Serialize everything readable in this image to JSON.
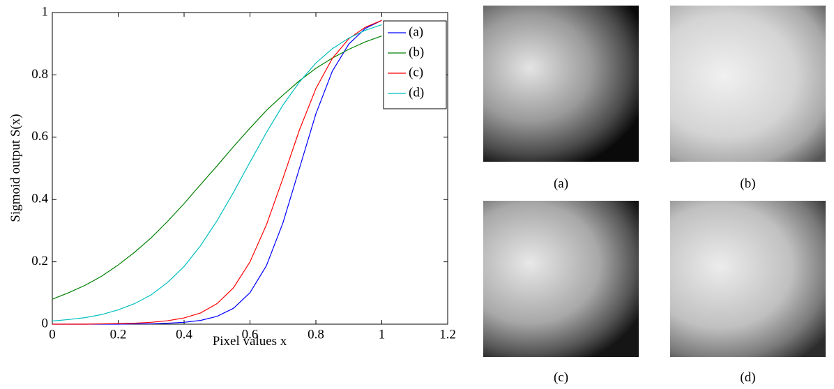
{
  "chart_data": {
    "type": "line",
    "x_label": "Pixel values x",
    "y_label": "Sigmoid output S(x)",
    "x": [
      0,
      0.05,
      0.1,
      0.15,
      0.2,
      0.25,
      0.3,
      0.35,
      0.4,
      0.45,
      0.5,
      0.55,
      0.6,
      0.65,
      0.7,
      0.75,
      0.8,
      0.85,
      0.9,
      0.95,
      1
    ],
    "series": [
      {
        "name": "(a)",
        "color": "#0000ff",
        "values": [
          0.0,
          0.0,
          0.0,
          0.0,
          0.0,
          0.001,
          0.001,
          0.003,
          0.006,
          0.012,
          0.025,
          0.051,
          0.101,
          0.188,
          0.325,
          0.5,
          0.675,
          0.812,
          0.899,
          0.949,
          0.975
        ]
      },
      {
        "name": "(b)",
        "color": "#008000",
        "values": [
          0.08,
          0.101,
          0.125,
          0.154,
          0.19,
          0.231,
          0.277,
          0.33,
          0.387,
          0.448,
          0.508,
          0.57,
          0.629,
          0.686,
          0.735,
          0.781,
          0.821,
          0.854,
          0.882,
          0.906,
          0.925
        ]
      },
      {
        "name": "(c)",
        "color": "#ff0000",
        "values": [
          0.0,
          0.0,
          0.0,
          0.001,
          0.002,
          0.003,
          0.006,
          0.011,
          0.02,
          0.036,
          0.066,
          0.117,
          0.2,
          0.319,
          0.468,
          0.623,
          0.756,
          0.853,
          0.916,
          0.953,
          0.975
        ]
      },
      {
        "name": "(d)",
        "color": "#00bfbf",
        "values": [
          0.01,
          0.015,
          0.021,
          0.031,
          0.046,
          0.066,
          0.094,
          0.134,
          0.185,
          0.252,
          0.332,
          0.423,
          0.52,
          0.615,
          0.703,
          0.777,
          0.838,
          0.884,
          0.918,
          0.943,
          0.961
        ]
      }
    ],
    "xlim": [
      0,
      1.2
    ],
    "xticks": [
      0,
      0.2,
      0.4,
      0.6,
      0.8,
      1,
      1.2
    ],
    "ylim": [
      0,
      1
    ],
    "yticks": [
      0,
      0.2,
      0.4,
      0.6,
      0.8,
      1
    ],
    "legend": "upper right"
  },
  "panels": [
    {
      "caption": "(a)"
    },
    {
      "caption": "(b)"
    },
    {
      "caption": "(c)"
    },
    {
      "caption": "(d)"
    }
  ]
}
